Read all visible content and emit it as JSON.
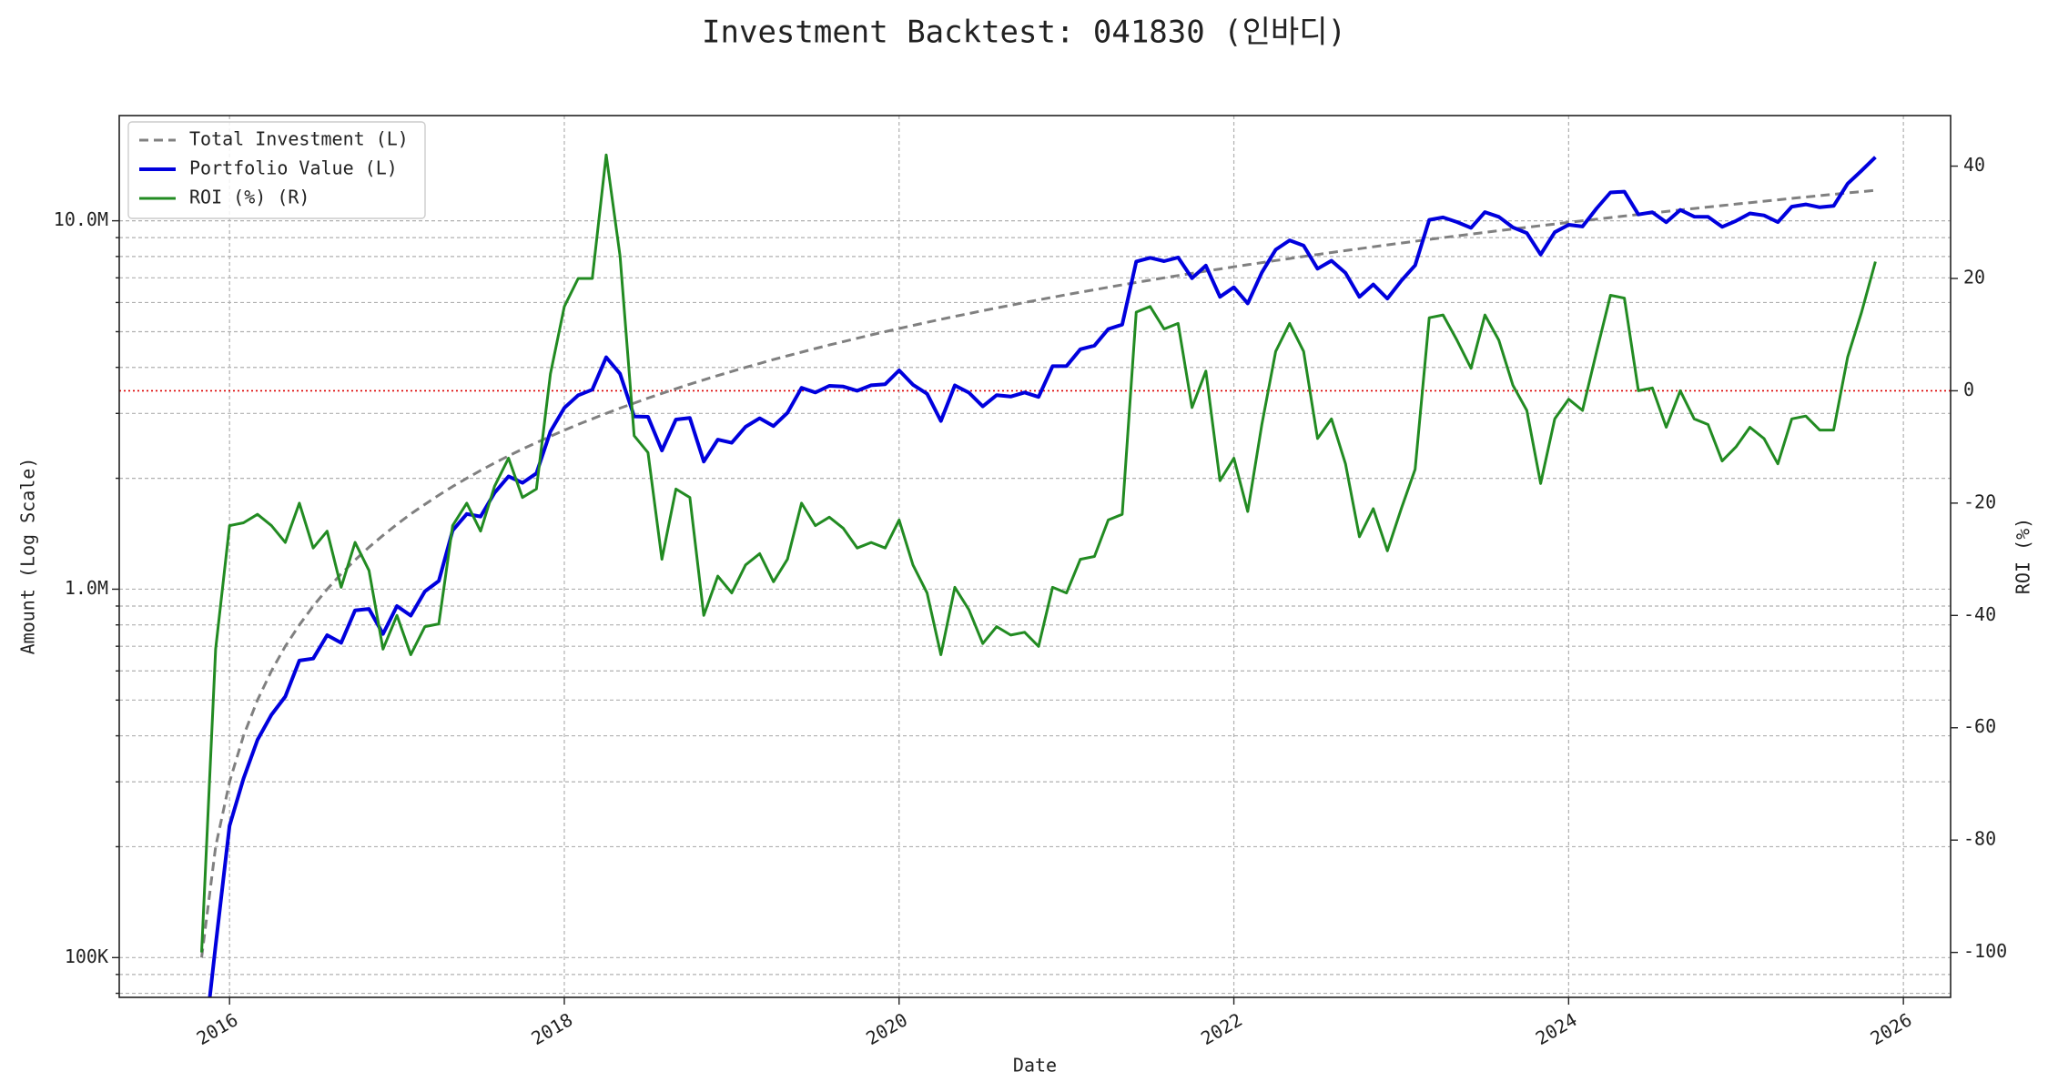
{
  "chart_data": {
    "type": "line",
    "title": "Investment Backtest: 041830 (인바디)",
    "xlabel": "Date",
    "ylabel": "Amount (Log Scale)",
    "y2label": "ROI (%)",
    "yscale": "log",
    "grid": true,
    "legend": "upper left",
    "hline_y2": {
      "value": 0,
      "color": "#dd0000"
    },
    "ylabel_color": "#0000cc",
    "y2label_color": "#228b22",
    "xlim": [
      2015.341,
      2026.282
    ],
    "xticks": [
      2016,
      2018,
      2020,
      2022,
      2024,
      2026
    ],
    "ylim": [
      78000,
      19300000
    ],
    "yticks": [
      {
        "value": 100000,
        "label": "100K"
      },
      {
        "value": 1000000,
        "label": "1.0M"
      },
      {
        "value": 10000000,
        "label": "10.0M"
      }
    ],
    "yminorticks": [
      80000,
      90000,
      200000,
      300000,
      400000,
      500000,
      600000,
      700000,
      800000,
      900000,
      2000000,
      3000000,
      4000000,
      5000000,
      6000000,
      7000000,
      8000000,
      9000000
    ],
    "y2lim": [
      -108,
      49
    ],
    "y2ticks": [
      -100,
      -80,
      -60,
      -40,
      -20,
      0,
      20,
      40
    ],
    "x": [
      2015.833,
      2015.917,
      2016,
      2016.083,
      2016.167,
      2016.25,
      2016.333,
      2016.417,
      2016.5,
      2016.583,
      2016.667,
      2016.75,
      2016.833,
      2016.917,
      2017,
      2017.083,
      2017.167,
      2017.25,
      2017.333,
      2017.417,
      2017.5,
      2017.583,
      2017.667,
      2017.75,
      2017.833,
      2017.917,
      2018,
      2018.083,
      2018.167,
      2018.25,
      2018.333,
      2018.417,
      2018.5,
      2018.583,
      2018.667,
      2018.75,
      2018.833,
      2018.917,
      2019,
      2019.083,
      2019.167,
      2019.25,
      2019.333,
      2019.417,
      2019.5,
      2019.583,
      2019.667,
      2019.75,
      2019.833,
      2019.917,
      2020,
      2020.083,
      2020.167,
      2020.25,
      2020.333,
      2020.417,
      2020.5,
      2020.583,
      2020.667,
      2020.75,
      2020.833,
      2020.917,
      2021,
      2021.083,
      2021.167,
      2021.25,
      2021.333,
      2021.417,
      2021.5,
      2021.583,
      2021.667,
      2021.75,
      2021.833,
      2021.917,
      2022,
      2022.083,
      2022.167,
      2022.25,
      2022.333,
      2022.417,
      2022.5,
      2022.583,
      2022.667,
      2022.75,
      2022.833,
      2022.917,
      2023,
      2023.083,
      2023.167,
      2023.25,
      2023.333,
      2023.417,
      2023.5,
      2023.583,
      2023.667,
      2023.75,
      2023.833,
      2023.917,
      2024,
      2024.083,
      2024.167,
      2024.25,
      2024.333,
      2024.417,
      2024.5,
      2024.583,
      2024.667,
      2024.75,
      2024.833,
      2024.917,
      2025,
      2025.083,
      2025.167,
      2025.25,
      2025.333,
      2025.417,
      2025.5,
      2025.583,
      2025.667,
      2025.75,
      2025.833
    ],
    "series": [
      {
        "name": "Total Investment (L)",
        "color": "#808080",
        "dash": true,
        "width": 3,
        "axis": "y",
        "values": [
          100000,
          200000,
          300000,
          400000,
          500000,
          600000,
          700000,
          800000,
          900000,
          1000000,
          1100000,
          1200000,
          1300000,
          1400000,
          1500000,
          1600000,
          1700000,
          1800000,
          1900000,
          2000000,
          2100000,
          2200000,
          2300000,
          2400000,
          2500000,
          2600000,
          2700000,
          2800000,
          2900000,
          3000000,
          3100000,
          3200000,
          3300000,
          3400000,
          3500000,
          3600000,
          3700000,
          3800000,
          3900000,
          4000000,
          4100000,
          4200000,
          4300000,
          4400000,
          4500000,
          4600000,
          4700000,
          4800000,
          4900000,
          5000000,
          5100000,
          5200000,
          5300000,
          5400000,
          5500000,
          5600000,
          5700000,
          5800000,
          5900000,
          6000000,
          6100000,
          6200000,
          6300000,
          6400000,
          6500000,
          6600000,
          6700000,
          6800000,
          6900000,
          7000000,
          7100000,
          7200000,
          7300000,
          7400000,
          7500000,
          7600000,
          7700000,
          7800000,
          7900000,
          8000000,
          8100000,
          8200000,
          8300000,
          8400000,
          8500000,
          8600000,
          8700000,
          8800000,
          8900000,
          9000000,
          9100000,
          9200000,
          9300000,
          9400000,
          9500000,
          9600000,
          9700000,
          9800000,
          9900000,
          10000000,
          10100000,
          10200000,
          10300000,
          10400000,
          10500000,
          10600000,
          10700000,
          10800000,
          10900000,
          11000000,
          11100000,
          11200000,
          11300000,
          11400000,
          11500000,
          11600000,
          11700000,
          11800000,
          11900000,
          12000000,
          12100000
        ]
      },
      {
        "name": "Portfolio Value (L)",
        "color": "#0000dd",
        "dash": false,
        "width": 4,
        "axis": "y",
        "values": [
          0,
          108000,
          228000,
          306000,
          390000,
          456000,
          511000,
          640000,
          648000,
          750000,
          715000,
          876000,
          884000,
          756000,
          900000,
          848000,
          986000,
          1053000,
          1444000,
          1600000,
          1575000,
          1826000,
          2024000,
          1944000,
          2062500,
          2678000,
          3105000,
          3360000,
          3480000,
          4260000,
          3844000,
          2944000,
          2937000,
          2380000,
          2887500,
          2916000,
          2220000,
          2546000,
          2496000,
          2760000,
          2911000,
          2772000,
          3010000,
          3520000,
          3420000,
          3565000,
          3548500,
          3456000,
          3577000,
          3600000,
          3927000,
          3588000,
          3392000,
          2862000,
          3575000,
          3416000,
          3135000,
          3364000,
          3333500,
          3420000,
          3324500,
          4030000,
          4032000,
          4480000,
          4582500,
          5082000,
          5226000,
          7752000,
          7935000,
          7770000,
          7952000,
          6984000,
          7555500,
          6216000,
          6600000,
          5966000,
          7238000,
          8346000,
          8848000,
          8560000,
          7411500,
          7790000,
          7221000,
          6216000,
          6715000,
          6149000,
          6873000,
          7568000,
          10057000,
          10215000,
          9919000,
          9568000,
          10555500,
          10246000,
          9595000,
          9264000,
          8099500,
          9310000,
          9751500,
          9650000,
          10807000,
          11934000,
          11999500,
          10400000,
          10552500,
          9911000,
          10700000,
          10260000,
          10246000,
          9625000,
          9990000,
          10472000,
          10339500,
          9918000,
          10925000,
          11078000,
          10881000,
          10974000,
          12614000,
          13680000,
          14883000
        ]
      },
      {
        "name": "ROI (%) (R)",
        "color": "#228b22",
        "dash": false,
        "width": 3,
        "axis": "y2",
        "values": [
          -100,
          -46,
          -24,
          -23.5,
          -22,
          -24,
          -27,
          -20,
          -28,
          -25,
          -35,
          -27,
          -32,
          -46,
          -40,
          -47,
          -42,
          -41.5,
          -24,
          -20,
          -25,
          -17,
          -12,
          -19,
          -17.5,
          3,
          15,
          20,
          20,
          42,
          24,
          -8,
          -11,
          -30,
          -17.5,
          -19,
          -40,
          -33,
          -36,
          -31,
          -29,
          -34,
          -30,
          -20,
          -24,
          -22.5,
          -24.5,
          -28,
          -27,
          -28,
          -23,
          -31,
          -36,
          -47,
          -35,
          -39,
          -45,
          -42,
          -43.5,
          -43,
          -45.5,
          -35,
          -36,
          -30,
          -29.5,
          -23,
          -22,
          14,
          15,
          11,
          12,
          -3,
          3.5,
          -16,
          -12,
          -21.5,
          -6,
          7,
          12,
          7,
          -8.5,
          -5,
          -13,
          -26,
          -21,
          -28.5,
          -21,
          -14,
          13,
          13.5,
          9,
          4,
          13.5,
          9,
          1,
          -3.5,
          -16.5,
          -5,
          -1.5,
          -3.5,
          7,
          17,
          16.5,
          0,
          0.5,
          -6.5,
          0,
          -5,
          -6,
          -12.5,
          -10,
          -6.5,
          -8.5,
          -13,
          -5,
          -4.5,
          -7,
          -7,
          6,
          14,
          23
        ]
      }
    ]
  }
}
